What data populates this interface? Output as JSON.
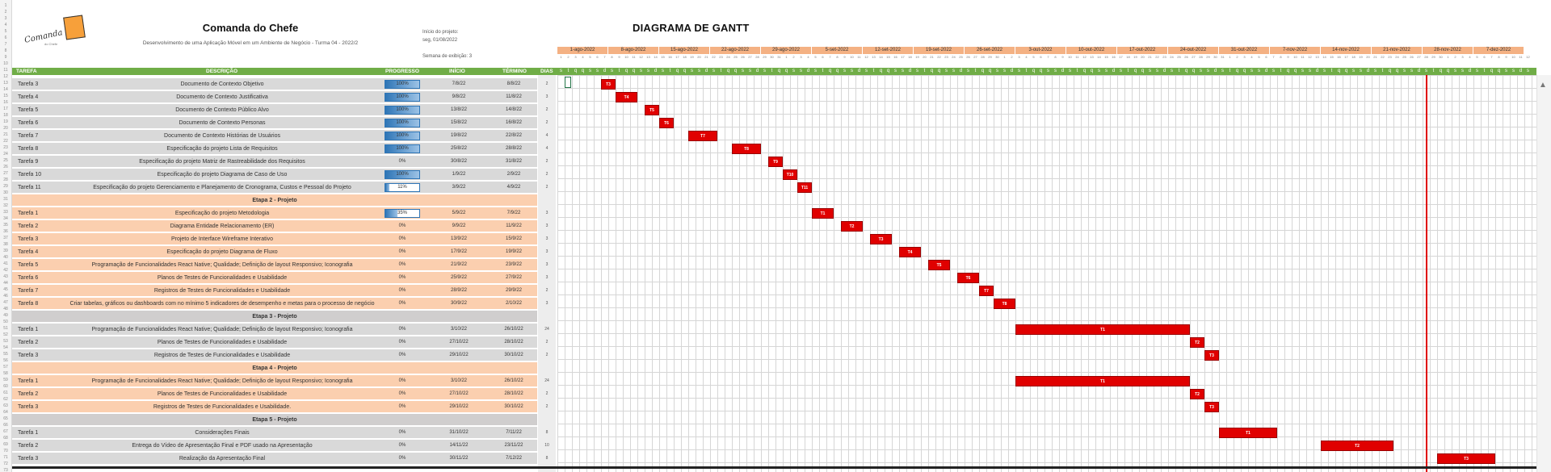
{
  "header": {
    "title": "Comanda do Chefe",
    "subtitle": "Desenvolvimento de uma Aplicação Móvel em um Ambiente de Negócio - Turma 04 - 2022/2",
    "logo_text": "Comanda",
    "logo_sub": "do Chefe",
    "project_start_label": "Início do projeto:",
    "project_start_value": "seg, 01/08/2022",
    "week_label": "Semana de exibição: 3",
    "gantt_title": "DIAGRAMA DE GANTT"
  },
  "table_headers": {
    "tarefa": "TAREFA",
    "descricao": "DESCRIÇÃO",
    "progresso": "PROGRESSO",
    "inicio": "INÍCIO",
    "termino": "TÉRMINO",
    "dias": "DIAS"
  },
  "weeks": [
    "1-ago-2022",
    "8-ago-2022",
    "15-ago-2022",
    "22-ago-2022",
    "29-ago-2022",
    "5-set-2022",
    "12-set-2022",
    "19-set-2022",
    "26-set-2022",
    "3-out-2022",
    "10-out-2022",
    "17-out-2022",
    "24-out-2022",
    "31-out-2022",
    "7-nov-2022",
    "14-nov-2022",
    "21-nov-2022",
    "28-nov-2022",
    "7-dez-2022"
  ],
  "day_letters": [
    "s",
    "t",
    "q",
    "q",
    "s",
    "s",
    "d"
  ],
  "rows": [
    {
      "type": "task",
      "style": "grey",
      "tarefa": "Tarefa 3",
      "descricao": "Documento de Contexto   Objetivo",
      "progresso": "100%",
      "progress": 1.0,
      "inicio": "7/8/22",
      "termino": "8/8/22",
      "dias": "2",
      "bar_label": "T3"
    },
    {
      "type": "task",
      "style": "grey",
      "tarefa": "Tarefa 4",
      "descricao": "Documento de Contexto   Justificativa",
      "progresso": "100%",
      "progress": 1.0,
      "inicio": "9/8/22",
      "termino": "11/8/22",
      "dias": "3",
      "bar_label": "T4"
    },
    {
      "type": "task",
      "style": "grey",
      "tarefa": "Tarefa 5",
      "descricao": "Documento de Contexto   Público Alvo",
      "progresso": "100%",
      "progress": 1.0,
      "inicio": "13/8/22",
      "termino": "14/8/22",
      "dias": "2",
      "bar_label": "T5"
    },
    {
      "type": "task",
      "style": "grey",
      "tarefa": "Tarefa 6",
      "descricao": "Documento de Contexto   Personas",
      "progresso": "100%",
      "progress": 1.0,
      "inicio": "15/8/22",
      "termino": "16/8/22",
      "dias": "2",
      "bar_label": "T6"
    },
    {
      "type": "task",
      "style": "grey",
      "tarefa": "Tarefa 7",
      "descricao": "Documento de Contexto   Histórias de Usuários",
      "progresso": "100%",
      "progress": 1.0,
      "inicio": "19/8/22",
      "termino": "22/8/22",
      "dias": "4",
      "bar_label": "T7"
    },
    {
      "type": "task",
      "style": "grey",
      "tarefa": "Tarefa 8",
      "descricao": "Especificação do projeto   Lista de Requisitos",
      "progresso": "100%",
      "progress": 1.0,
      "inicio": "25/8/22",
      "termino": "28/8/22",
      "dias": "4",
      "bar_label": "T8"
    },
    {
      "type": "task",
      "style": "grey",
      "tarefa": "Tarefa 9",
      "descricao": "Especificação do projeto   Matriz de Rastreabilidade dos Requisitos",
      "progresso": "0%",
      "progress": 0.0,
      "inicio": "30/8/22",
      "termino": "31/8/22",
      "dias": "2",
      "bar_label": "T9"
    },
    {
      "type": "task",
      "style": "grey",
      "tarefa": "Tarefa 10",
      "descricao": "Especificação do projeto   Diagrama de Caso de Uso",
      "progresso": "100%",
      "progress": 1.0,
      "inicio": "1/9/22",
      "termino": "2/9/22",
      "dias": "2",
      "bar_label": "T10"
    },
    {
      "type": "task",
      "style": "grey",
      "tarefa": "Tarefa 11",
      "descricao": "Especificação do projeto   Gerenciamento e Planejamento de Cronograma, Custos e Pessoal do Projeto",
      "progresso": "11%",
      "progress": 0.11,
      "inicio": "3/9/22",
      "termino": "4/9/22",
      "dias": "2",
      "bar_label": "T11"
    },
    {
      "type": "stage",
      "style": "orange",
      "label": "Etapa 2 - Projeto"
    },
    {
      "type": "task",
      "style": "orange",
      "tarefa": "Tarefa 1",
      "descricao": "Especificação do projeto   Metodologia",
      "progresso": "35%",
      "progress": 0.35,
      "inicio": "5/9/22",
      "termino": "7/9/22",
      "dias": "3",
      "bar_label": "T1"
    },
    {
      "type": "task",
      "style": "orange",
      "tarefa": "Tarefa 2",
      "descricao": "Diagrama Entidade   Relacionamento (ER)",
      "progresso": "0%",
      "progress": 0.0,
      "inicio": "9/9/22",
      "termino": "11/9/22",
      "dias": "3",
      "bar_label": "T2"
    },
    {
      "type": "task",
      "style": "orange",
      "tarefa": "Tarefa 3",
      "descricao": "Projeto de Interface   Wireframe Interativo",
      "progresso": "0%",
      "progress": 0.0,
      "inicio": "13/9/22",
      "termino": "15/9/22",
      "dias": "3",
      "bar_label": "T3"
    },
    {
      "type": "task",
      "style": "orange",
      "tarefa": "Tarefa 4",
      "descricao": "Especificação do projeto   Diagrama de Fluxo",
      "progresso": "0%",
      "progress": 0.0,
      "inicio": "17/9/22",
      "termino": "19/9/22",
      "dias": "3",
      "bar_label": "T4"
    },
    {
      "type": "task",
      "style": "orange",
      "tarefa": "Tarefa 5",
      "descricao": "Programação de Funcionalidades   React Native; Qualidade; Definição de layout Responsivo; Iconografia",
      "progresso": "0%",
      "progress": 0.0,
      "inicio": "21/9/22",
      "termino": "23/9/22",
      "dias": "3",
      "bar_label": "T5"
    },
    {
      "type": "task",
      "style": "orange",
      "tarefa": "Tarefa 6",
      "descricao": "Planos de Testes de Funcionalidades  e Usabilidade",
      "progresso": "0%",
      "progress": 0.0,
      "inicio": "25/9/22",
      "termino": "27/9/22",
      "dias": "3",
      "bar_label": "T6"
    },
    {
      "type": "task",
      "style": "orange",
      "tarefa": "Tarefa 7",
      "descricao": "Registros de Testes de Funcionalidades  e Usabilidade",
      "progresso": "0%",
      "progress": 0.0,
      "inicio": "28/9/22",
      "termino": "29/9/22",
      "dias": "2",
      "bar_label": "T7"
    },
    {
      "type": "task",
      "style": "orange",
      "tarefa": "Tarefa 8",
      "descricao": "Criar tabelas, gráficos ou dashboards com no mínimo 5 indicadores de desempenho e metas para o processo de negócio",
      "progresso": "0%",
      "progress": 0.0,
      "inicio": "30/9/22",
      "termino": "2/10/22",
      "dias": "3",
      "bar_label": "T8"
    },
    {
      "type": "stage",
      "style": "grey",
      "label": "Etapa 3 - Projeto"
    },
    {
      "type": "task",
      "style": "grey",
      "tarefa": "Tarefa 1",
      "descricao": "Programação de Funcionalidades   React Native; Qualidade; Definição de layout Responsivo; Iconografia",
      "progresso": "0%",
      "progress": 0.0,
      "inicio": "3/10/22",
      "termino": "26/10/22",
      "dias": "24",
      "bar_label": "T1"
    },
    {
      "type": "task",
      "style": "grey",
      "tarefa": "Tarefa 2",
      "descricao": "Planos de Testes de Funcionalidades  e Usabilidade",
      "progresso": "0%",
      "progress": 0.0,
      "inicio": "27/10/22",
      "termino": "28/10/22",
      "dias": "2",
      "bar_label": "T2"
    },
    {
      "type": "task",
      "style": "grey",
      "tarefa": "Tarefa 3",
      "descricao": "Registros de Testes de Funcionalidades  e Usabilidade",
      "progresso": "0%",
      "progress": 0.0,
      "inicio": "29/10/22",
      "termino": "30/10/22",
      "dias": "2",
      "bar_label": "T3"
    },
    {
      "type": "stage",
      "style": "orange",
      "label": "Etapa 4 - Projeto"
    },
    {
      "type": "task",
      "style": "orange",
      "tarefa": "Tarefa 1",
      "descricao": "Programação de Funcionalidades   React Native; Qualidade; Definição de layout Responsivo; Iconografia",
      "progresso": "0%",
      "progress": 0.0,
      "inicio": "3/10/22",
      "termino": "26/10/22",
      "dias": "24",
      "bar_label": "T1"
    },
    {
      "type": "task",
      "style": "orange",
      "tarefa": "Tarefa 2",
      "descricao": "Planos de Testes de Funcionalidades  e Usabilidade",
      "progresso": "0%",
      "progress": 0.0,
      "inicio": "27/10/22",
      "termino": "28/10/22",
      "dias": "2",
      "bar_label": "T2"
    },
    {
      "type": "task",
      "style": "orange",
      "tarefa": "Tarefa 3",
      "descricao": "Registros de Testes de Funcionalidades  e Usabilidade.",
      "progresso": "0%",
      "progress": 0.0,
      "inicio": "29/10/22",
      "termino": "30/10/22",
      "dias": "2",
      "bar_label": "T3"
    },
    {
      "type": "stage",
      "style": "grey",
      "label": "Etapa 5 - Projeto"
    },
    {
      "type": "task",
      "style": "grey",
      "tarefa": "Tarefa 1",
      "descricao": "Considerações Finais",
      "progresso": "0%",
      "progress": 0.0,
      "inicio": "31/10/22",
      "termino": "7/11/22",
      "dias": "8",
      "bar_label": "T1"
    },
    {
      "type": "task",
      "style": "grey",
      "tarefa": "Tarefa 2",
      "descricao": "Entrega do Vídeo de Apresentação Final e PDF usado na Apresentação",
      "progresso": "0%",
      "progress": 0.0,
      "inicio": "14/11/22",
      "termino": "23/11/22",
      "dias": "10",
      "bar_label": "T2"
    },
    {
      "type": "task",
      "style": "grey",
      "tarefa": "Tarefa 3",
      "descricao": "Realização da Apresentação Final",
      "progresso": "0%",
      "progress": 0.0,
      "inicio": "30/11/22",
      "termino": "7/12/22",
      "dias": "8",
      "bar_label": "T3"
    }
  ],
  "colors": {
    "bar": "#e00000",
    "header_green": "#70ad47",
    "week_band": "#f4b183",
    "row_grey": "#d9d9d9",
    "row_orange": "#fbcfaf",
    "progress_blue": "#2e75b6",
    "today_line": "#e00000"
  },
  "today_date": "28/11/22"
}
